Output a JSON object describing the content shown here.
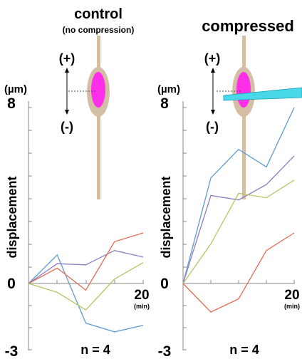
{
  "chart_data": [
    {
      "type": "line",
      "title": "control",
      "subtitle": "(no compression)",
      "ylabel": "displacement",
      "yunit": "(µm)",
      "xunit": "(min)",
      "ylim": [
        -3,
        8
      ],
      "xlim": [
        0,
        20
      ],
      "ytick_labels": [
        "8",
        "0",
        "-3"
      ],
      "xtick_labels": [
        "20"
      ],
      "arrow_labels": [
        "(+)",
        "(-)"
      ],
      "annotation": "n = 4",
      "grid": false,
      "series": [
        {
          "color": "#5b9bd5",
          "x": [
            0,
            5,
            10,
            15,
            20
          ],
          "y": [
            0,
            1.3,
            -1.8,
            -2.2,
            -1.9
          ]
        },
        {
          "color": "#8e7cc3",
          "x": [
            0,
            5,
            10,
            15,
            20
          ],
          "y": [
            0,
            0.9,
            0.85,
            1.5,
            1.2
          ]
        },
        {
          "color": "#e06c56",
          "x": [
            0,
            5,
            10,
            15,
            20
          ],
          "y": [
            0,
            0.7,
            -0.3,
            1.9,
            2.3
          ]
        },
        {
          "color": "#b5c563",
          "x": [
            0,
            5,
            10,
            15,
            20
          ],
          "y": [
            0,
            -0.4,
            -1.2,
            0.2,
            0.95
          ]
        }
      ]
    },
    {
      "type": "line",
      "title": "compressed",
      "ylabel": "displacement",
      "yunit": "(µm)",
      "xunit": "(min)",
      "ylim": [
        -3,
        8
      ],
      "xlim": [
        0,
        20
      ],
      "ytick_labels": [
        "8",
        "0",
        "-3"
      ],
      "xtick_labels": [
        "20"
      ],
      "arrow_labels": [
        "(+)",
        "(-)"
      ],
      "annotation": "n = 4",
      "grid": false,
      "series": [
        {
          "color": "#5b9bd5",
          "x": [
            0,
            5,
            10,
            15,
            20
          ],
          "y": [
            0,
            4.8,
            6.1,
            5.3,
            8.0
          ]
        },
        {
          "color": "#8e7cc3",
          "x": [
            0,
            5,
            10,
            15,
            20
          ],
          "y": [
            0,
            4.0,
            3.8,
            4.5,
            5.8
          ]
        },
        {
          "color": "#b5c563",
          "x": [
            0,
            5,
            10,
            15,
            20
          ],
          "y": [
            0,
            1.8,
            4.1,
            3.9,
            4.7
          ]
        },
        {
          "color": "#e06c56",
          "x": [
            0,
            5,
            10,
            15,
            20
          ],
          "y": [
            0,
            -1.3,
            -0.7,
            1.5,
            2.3
          ]
        }
      ]
    }
  ],
  "colors": {
    "cell_body": "#d4bfa6",
    "nucleus": "#ff2ee8",
    "pipette": "#49d8e8",
    "axis": "#8a8a8a",
    "guide_line": "#444444"
  }
}
